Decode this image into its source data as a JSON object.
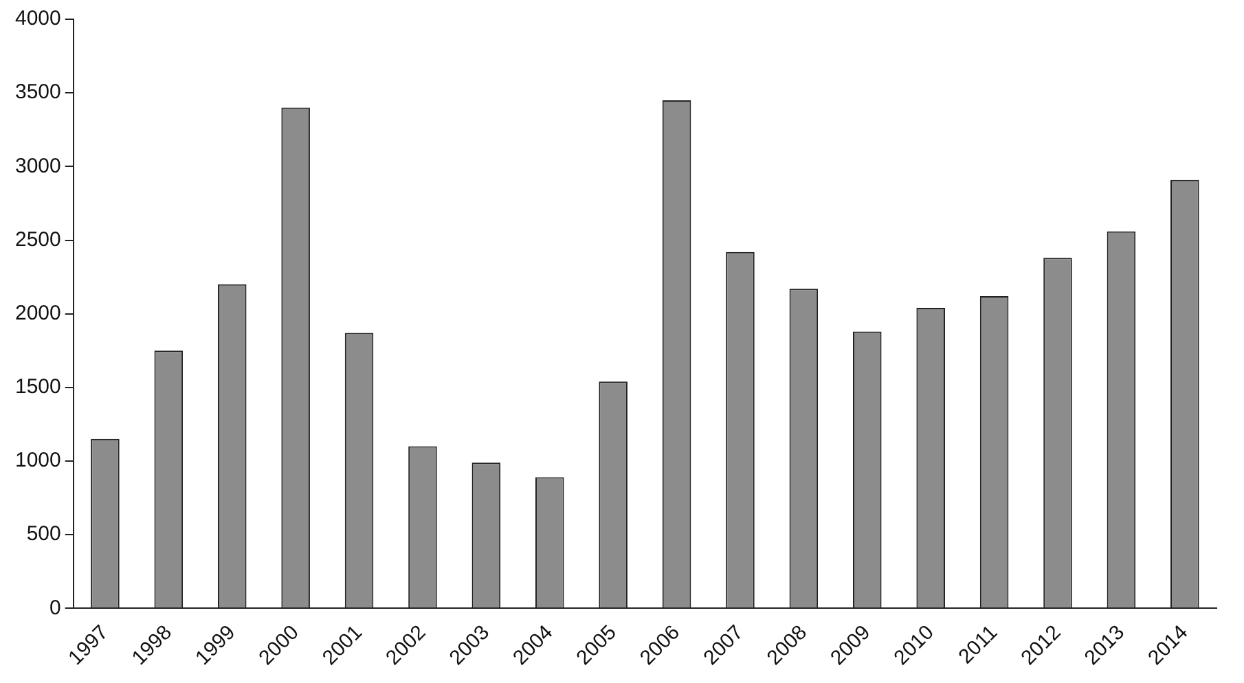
{
  "chart_data": {
    "type": "bar",
    "categories": [
      "1997",
      "1998",
      "1999",
      "2000",
      "2001",
      "2002",
      "2003",
      "2004",
      "2005",
      "2006",
      "2007",
      "2008",
      "2009",
      "2010",
      "2011",
      "2012",
      "2013",
      "2014"
    ],
    "values": [
      1150,
      1750,
      2200,
      3400,
      1870,
      1100,
      990,
      890,
      1540,
      3450,
      2420,
      2170,
      1880,
      2040,
      2120,
      2380,
      2560,
      2910
    ],
    "color": "#8c8c8c",
    "ylim": [
      0,
      4000
    ],
    "yticks": [
      0,
      500,
      1000,
      1500,
      2000,
      2500,
      3000,
      3500,
      4000
    ],
    "grid": false,
    "legend": false
  }
}
